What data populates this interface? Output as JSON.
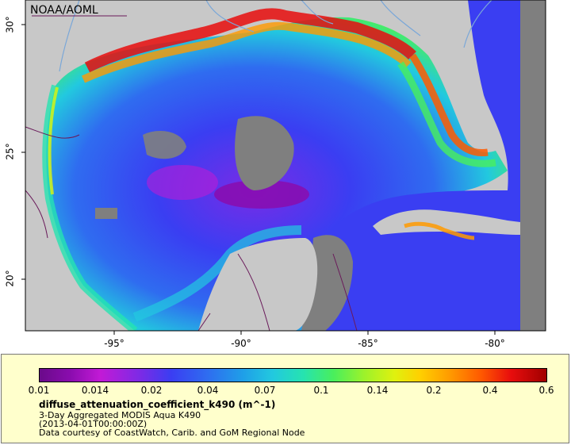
{
  "map": {
    "watermark": "NOAA/AOML",
    "x_ticks": [
      "-95°",
      "-90°",
      "-85°",
      "-80°"
    ],
    "y_ticks": [
      "30°",
      "25°",
      "20°"
    ]
  },
  "colorbar": {
    "ticks": [
      "0.01",
      "0.014",
      "0.02",
      "0.04",
      "0.07",
      "0.1",
      "0.14",
      "0.2",
      "0.4",
      "0.6"
    ]
  },
  "legend": {
    "variable": "diffuse_attenuation_coefficient_k490 (m^-1)",
    "description": "3-Day Aggregated MODIS Aqua K490",
    "timestamp": "(2013-04-01T00:00:00Z)",
    "credit": "Data courtesy of CoastWatch, Carib. and GoM Regional Node"
  },
  "colors": {
    "land": "#c8c8c8",
    "nodata": "#7f7f7f",
    "ocean_deep": "#3a3ef2",
    "coast_high": "#e80d0d",
    "border": "#6a1a5a",
    "river": "#7aa7d8",
    "panel": "#ffffcc"
  }
}
